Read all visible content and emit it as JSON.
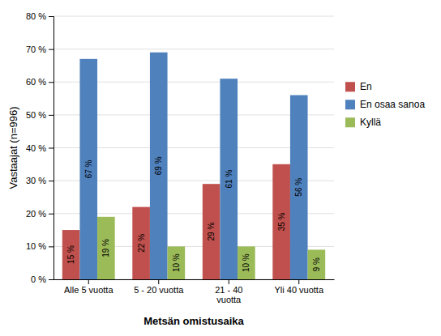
{
  "chart_data": {
    "type": "bar",
    "categories": [
      "Alle 5 vuotta",
      "5 - 20 vuotta",
      "21 - 40\nvuotta",
      "Yli 40 vuotta"
    ],
    "series": [
      {
        "name": "En",
        "color": "#c0504d",
        "values": [
          15,
          22,
          29,
          35
        ],
        "value_labels": [
          "15 %",
          "22 %",
          "29 %",
          "35 %"
        ]
      },
      {
        "name": "En osaa sanoa",
        "color": "#4f81bd",
        "values": [
          67,
          69,
          61,
          56
        ],
        "value_labels": [
          "67 %",
          "69 %",
          "61 %",
          "56 %"
        ]
      },
      {
        "name": "Kyllä",
        "color": "#9bbb59",
        "values": [
          19,
          10,
          10,
          9
        ],
        "value_labels": [
          "19 %",
          "10 %",
          "10 %",
          "9 %"
        ]
      }
    ],
    "xlabel": "Metsän omistusaika",
    "ylabel": "Vastaajat (n=996)",
    "ylim": [
      0,
      80
    ],
    "yticks": [
      {
        "value": 0,
        "label": "0 %"
      },
      {
        "value": 10,
        "label": "10 %"
      },
      {
        "value": 20,
        "label": "20 %"
      },
      {
        "value": 30,
        "label": "30 %"
      },
      {
        "value": 40,
        "label": "40 %"
      },
      {
        "value": 50,
        "label": "50 %"
      },
      {
        "value": 60,
        "label": "60 %"
      },
      {
        "value": 70,
        "label": "70 %"
      },
      {
        "value": 80,
        "label": "80 %"
      }
    ],
    "grid": true,
    "legend": "right",
    "data_labels": true
  }
}
